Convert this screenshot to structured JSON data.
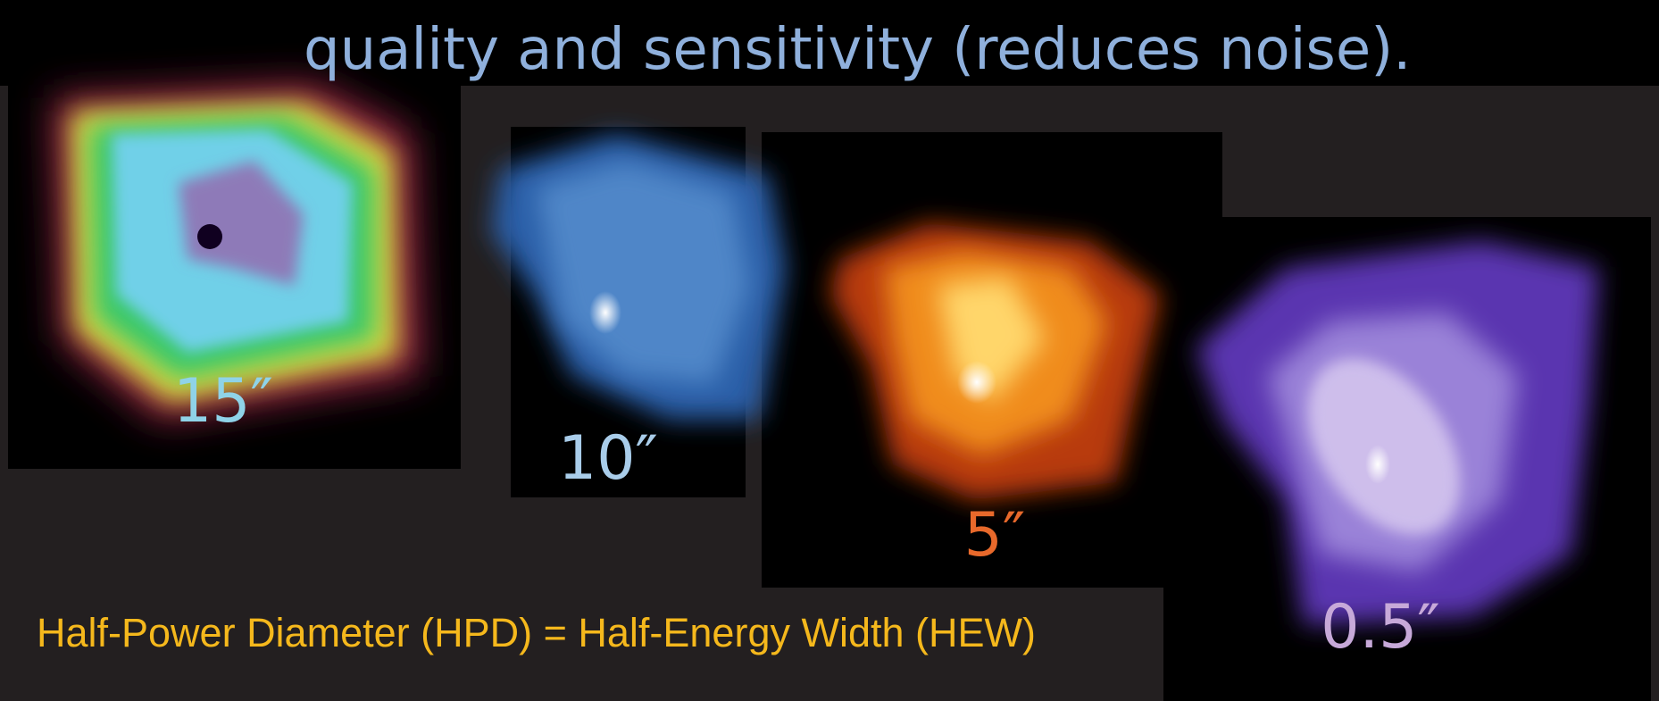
{
  "header": {
    "title": "quality and sensitivity (reduces noise)."
  },
  "images": [
    {
      "label": "15″"
    },
    {
      "label": "10″"
    },
    {
      "label": "5″"
    },
    {
      "label": "0.5″"
    }
  ],
  "footer": {
    "text": "Half-Power Diameter (HPD) = Half-Energy Width (HEW)"
  }
}
